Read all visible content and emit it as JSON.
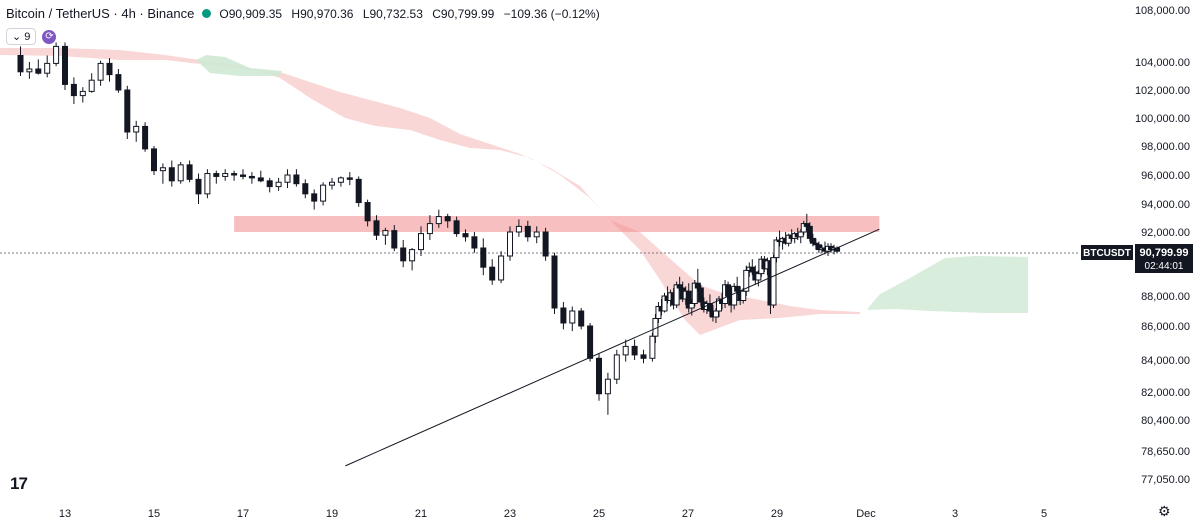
{
  "header": {
    "symbol": "Bitcoin / TetherUS · 4h · Binance",
    "open": "O90,909.35",
    "high": "H90,970.36",
    "low": "L90,732.53",
    "close": "C90,799.99",
    "change": "−109.36 (−0.12%)"
  },
  "controls": {
    "interval": "9"
  },
  "price_tag": {
    "symbol": "BTCUSDT",
    "price": "90,799.99",
    "countdown": "02:44:01"
  },
  "colors": {
    "up": "#131722",
    "down": "#131722",
    "cloud_bear": "#f8c9c9",
    "cloud_bull": "#cfe9d5",
    "zone": "#f08b8b"
  },
  "chart_data": {
    "type": "candlestick",
    "title": "",
    "xlabel": "",
    "ylabel": "",
    "y_ticks": [
      "108,000.00",
      "104,000.00",
      "102,000.00",
      "100,000.00",
      "98,000.00",
      "96,000.00",
      "94,000.00",
      "92,000.00",
      "88,000.00",
      "86,000.00",
      "84,000.00",
      "82,000.00",
      "80,400.00",
      "78,650.00",
      "77,050.00"
    ],
    "x_ticks": [
      "13",
      "15",
      "17",
      "19",
      "21",
      "23",
      "25",
      "27",
      "29",
      "Dec",
      "3",
      "5"
    ],
    "last_price": 90799.99,
    "resistance_zone": {
      "from_day": 16.8,
      "to_day": 31.3,
      "low": 92000,
      "high": 93000
    },
    "trendline": [
      {
        "day": 19.3,
        "price": 77800
      },
      {
        "day": 31.3,
        "price": 92200
      }
    ],
    "candles": [
      {
        "d": 12.0,
        "o": 104500,
        "h": 105200,
        "l": 103000,
        "c": 103300
      },
      {
        "d": 12.2,
        "o": 103300,
        "h": 104000,
        "l": 102800,
        "c": 103500
      },
      {
        "d": 12.4,
        "o": 103500,
        "h": 104200,
        "l": 103100,
        "c": 103200
      },
      {
        "d": 12.6,
        "o": 103200,
        "h": 104500,
        "l": 102900,
        "c": 103900
      },
      {
        "d": 12.8,
        "o": 103900,
        "h": 105500,
        "l": 103700,
        "c": 105200
      },
      {
        "d": 13.0,
        "o": 105200,
        "h": 105500,
        "l": 102000,
        "c": 102400
      },
      {
        "d": 13.2,
        "o": 102400,
        "h": 102900,
        "l": 101000,
        "c": 101600
      },
      {
        "d": 13.4,
        "o": 101600,
        "h": 102200,
        "l": 101100,
        "c": 101900
      },
      {
        "d": 13.6,
        "o": 101900,
        "h": 103200,
        "l": 101800,
        "c": 102700
      },
      {
        "d": 13.8,
        "o": 102700,
        "h": 104100,
        "l": 102300,
        "c": 103900
      },
      {
        "d": 14.0,
        "o": 103900,
        "h": 104300,
        "l": 102600,
        "c": 103100
      },
      {
        "d": 14.2,
        "o": 103100,
        "h": 103500,
        "l": 101800,
        "c": 102000
      },
      {
        "d": 14.4,
        "o": 102000,
        "h": 102300,
        "l": 98500,
        "c": 99000
      },
      {
        "d": 14.6,
        "o": 99000,
        "h": 99800,
        "l": 98300,
        "c": 99400
      },
      {
        "d": 14.8,
        "o": 99400,
        "h": 99700,
        "l": 97600,
        "c": 97800
      },
      {
        "d": 15.0,
        "o": 97800,
        "h": 98000,
        "l": 96000,
        "c": 96300
      },
      {
        "d": 15.2,
        "o": 96300,
        "h": 96800,
        "l": 95400,
        "c": 96500
      },
      {
        "d": 15.4,
        "o": 96500,
        "h": 97000,
        "l": 95200,
        "c": 95600
      },
      {
        "d": 15.6,
        "o": 95600,
        "h": 96900,
        "l": 95400,
        "c": 96700
      },
      {
        "d": 15.8,
        "o": 96700,
        "h": 97000,
        "l": 95500,
        "c": 95700
      },
      {
        "d": 16.0,
        "o": 95700,
        "h": 96100,
        "l": 94000,
        "c": 94700
      },
      {
        "d": 16.2,
        "o": 94700,
        "h": 96400,
        "l": 94400,
        "c": 96100
      },
      {
        "d": 16.4,
        "o": 96100,
        "h": 96300,
        "l": 95400,
        "c": 95900
      },
      {
        "d": 16.6,
        "o": 95900,
        "h": 96400,
        "l": 95600,
        "c": 96100
      },
      {
        "d": 16.8,
        "o": 96100,
        "h": 96300,
        "l": 95600,
        "c": 96000
      },
      {
        "d": 17.0,
        "o": 96000,
        "h": 96400,
        "l": 95700,
        "c": 95900
      },
      {
        "d": 17.2,
        "o": 95900,
        "h": 96200,
        "l": 95400,
        "c": 95800
      },
      {
        "d": 17.4,
        "o": 95800,
        "h": 96300,
        "l": 95500,
        "c": 95600
      },
      {
        "d": 17.6,
        "o": 95600,
        "h": 95800,
        "l": 94800,
        "c": 95200
      },
      {
        "d": 17.8,
        "o": 95200,
        "h": 95800,
        "l": 94900,
        "c": 95500
      },
      {
        "d": 18.0,
        "o": 95500,
        "h": 96400,
        "l": 95100,
        "c": 96000
      },
      {
        "d": 18.2,
        "o": 96000,
        "h": 96400,
        "l": 95200,
        "c": 95400
      },
      {
        "d": 18.4,
        "o": 95400,
        "h": 95700,
        "l": 94400,
        "c": 94700
      },
      {
        "d": 18.6,
        "o": 94700,
        "h": 95000,
        "l": 93600,
        "c": 94200
      },
      {
        "d": 18.8,
        "o": 94200,
        "h": 95500,
        "l": 93900,
        "c": 95300
      },
      {
        "d": 19.0,
        "o": 95300,
        "h": 95800,
        "l": 95000,
        "c": 95500
      },
      {
        "d": 19.2,
        "o": 95500,
        "h": 95900,
        "l": 95200,
        "c": 95800
      },
      {
        "d": 19.4,
        "o": 95800,
        "h": 96200,
        "l": 95300,
        "c": 95700
      },
      {
        "d": 19.6,
        "o": 95700,
        "h": 95900,
        "l": 93800,
        "c": 94100
      },
      {
        "d": 19.8,
        "o": 94100,
        "h": 94300,
        "l": 92400,
        "c": 92800
      },
      {
        "d": 20.0,
        "o": 92800,
        "h": 93200,
        "l": 91500,
        "c": 91800
      },
      {
        "d": 20.2,
        "o": 91800,
        "h": 92300,
        "l": 91200,
        "c": 92100
      },
      {
        "d": 20.4,
        "o": 92100,
        "h": 92500,
        "l": 90800,
        "c": 91000
      },
      {
        "d": 20.6,
        "o": 91000,
        "h": 91500,
        "l": 89800,
        "c": 90200
      },
      {
        "d": 20.8,
        "o": 90200,
        "h": 91000,
        "l": 89600,
        "c": 90900
      },
      {
        "d": 21.0,
        "o": 90900,
        "h": 92400,
        "l": 90500,
        "c": 91900
      },
      {
        "d": 21.2,
        "o": 91900,
        "h": 93200,
        "l": 91500,
        "c": 92600
      },
      {
        "d": 21.4,
        "o": 92600,
        "h": 93600,
        "l": 92300,
        "c": 93100
      },
      {
        "d": 21.6,
        "o": 93100,
        "h": 93300,
        "l": 92300,
        "c": 92800
      },
      {
        "d": 21.8,
        "o": 92800,
        "h": 93100,
        "l": 91700,
        "c": 91900
      },
      {
        "d": 22.0,
        "o": 91900,
        "h": 92200,
        "l": 91400,
        "c": 91700
      },
      {
        "d": 22.2,
        "o": 91700,
        "h": 92000,
        "l": 90700,
        "c": 91000
      },
      {
        "d": 22.4,
        "o": 91000,
        "h": 91600,
        "l": 89300,
        "c": 89800
      },
      {
        "d": 22.6,
        "o": 89800,
        "h": 90300,
        "l": 88700,
        "c": 89000
      },
      {
        "d": 22.8,
        "o": 89000,
        "h": 90800,
        "l": 88800,
        "c": 90500
      },
      {
        "d": 23.0,
        "o": 90500,
        "h": 92400,
        "l": 90200,
        "c": 92000
      },
      {
        "d": 23.2,
        "o": 92000,
        "h": 92900,
        "l": 91700,
        "c": 92400
      },
      {
        "d": 23.4,
        "o": 92400,
        "h": 92800,
        "l": 91400,
        "c": 91700
      },
      {
        "d": 23.6,
        "o": 91700,
        "h": 92400,
        "l": 91300,
        "c": 92000
      },
      {
        "d": 23.8,
        "o": 92000,
        "h": 92300,
        "l": 90200,
        "c": 90500
      },
      {
        "d": 24.0,
        "o": 90500,
        "h": 90700,
        "l": 86800,
        "c": 87200
      },
      {
        "d": 24.2,
        "o": 87200,
        "h": 87600,
        "l": 85800,
        "c": 86200
      },
      {
        "d": 24.4,
        "o": 86200,
        "h": 87300,
        "l": 85700,
        "c": 87000
      },
      {
        "d": 24.6,
        "o": 87000,
        "h": 87200,
        "l": 85800,
        "c": 86000
      },
      {
        "d": 24.8,
        "o": 86000,
        "h": 86200,
        "l": 83900,
        "c": 84100
      },
      {
        "d": 25.0,
        "o": 84100,
        "h": 84400,
        "l": 81500,
        "c": 81900
      },
      {
        "d": 25.2,
        "o": 81900,
        "h": 83200,
        "l": 80700,
        "c": 82800
      },
      {
        "d": 25.4,
        "o": 82800,
        "h": 84600,
        "l": 82500,
        "c": 84300
      },
      {
        "d": 25.6,
        "o": 84300,
        "h": 85200,
        "l": 83900,
        "c": 84800
      },
      {
        "d": 25.8,
        "o": 84800,
        "h": 85200,
        "l": 84000,
        "c": 84300
      },
      {
        "d": 26.0,
        "o": 84300,
        "h": 84600,
        "l": 83800,
        "c": 84100
      }
    ]
  }
}
